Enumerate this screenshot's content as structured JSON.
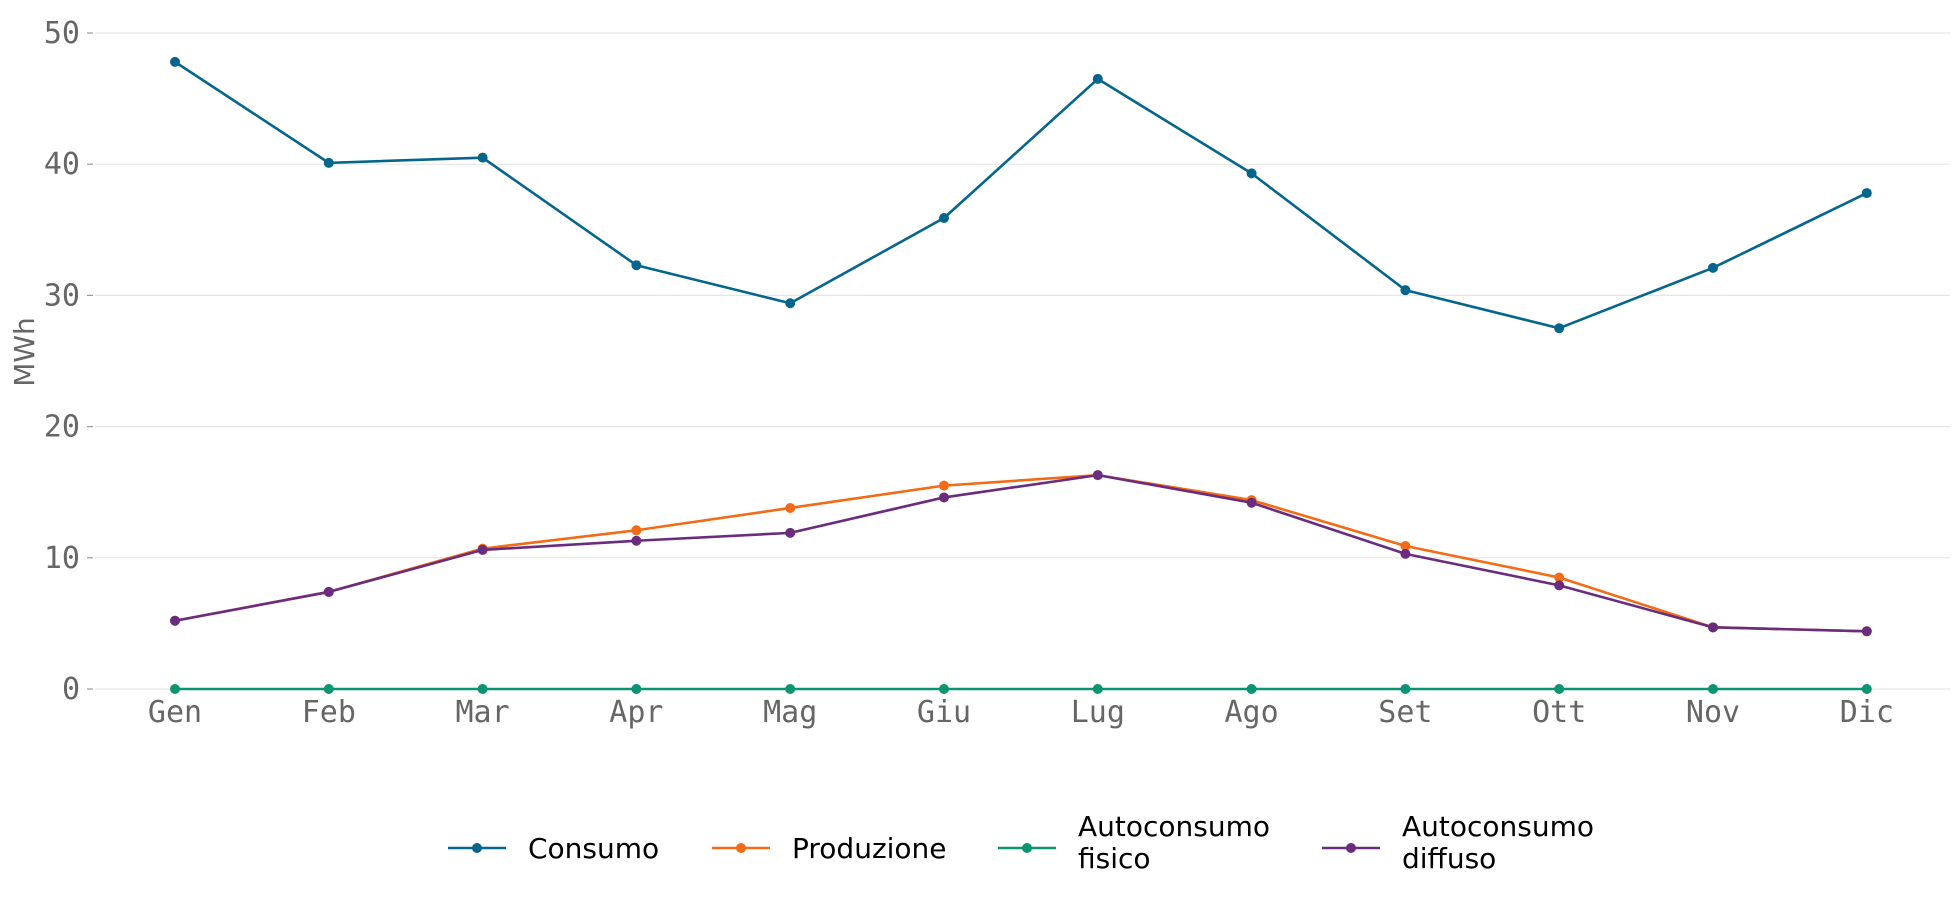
{
  "chart_data": {
    "type": "line",
    "title": "",
    "xlabel": "",
    "ylabel": "MWh",
    "ylim": [
      0,
      50
    ],
    "yticks": [
      0,
      10,
      20,
      30,
      40,
      50
    ],
    "grid": true,
    "legend_position": "bottom",
    "categories": [
      "Gen",
      "Feb",
      "Mar",
      "Apr",
      "Mag",
      "Giu",
      "Lug",
      "Ago",
      "Set",
      "Ott",
      "Nov",
      "Dic"
    ],
    "series": [
      {
        "name": "Consumo",
        "color": "#05668d",
        "values": [
          47.8,
          40.1,
          40.5,
          32.3,
          29.4,
          35.9,
          46.5,
          39.3,
          30.4,
          27.5,
          32.1,
          37.8
        ]
      },
      {
        "name": "Produzione",
        "color": "#f36b16",
        "values": [
          5.2,
          7.4,
          10.7,
          12.1,
          13.8,
          15.5,
          16.3,
          14.4,
          10.9,
          8.5,
          4.7,
          4.4
        ]
      },
      {
        "name": "Autoconsumo fisico",
        "color": "#0a9472",
        "values": [
          0,
          0,
          0,
          0,
          0,
          0,
          0,
          0,
          0,
          0,
          0,
          0
        ]
      },
      {
        "name": "Autoconsumo diffuso",
        "color": "#6a2c7e",
        "values": [
          5.2,
          7.4,
          10.6,
          11.3,
          11.9,
          14.6,
          16.3,
          14.2,
          10.3,
          7.9,
          4.7,
          4.4
        ]
      }
    ],
    "legend": [
      {
        "lines": [
          "Consumo"
        ]
      },
      {
        "lines": [
          "Produzione"
        ]
      },
      {
        "lines": [
          "Autoconsumo",
          "fisico"
        ]
      },
      {
        "lines": [
          "Autoconsumo",
          "diffuso"
        ]
      }
    ]
  }
}
